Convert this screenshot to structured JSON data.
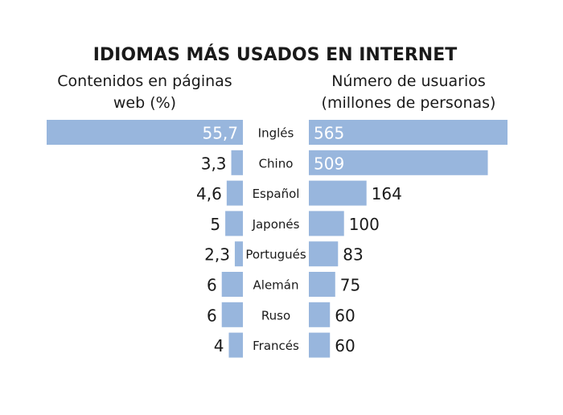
{
  "chart_data": {
    "type": "bar",
    "title": "IDIOMAS MÁS USADOS EN INTERNET",
    "categories": [
      "Inglés",
      "Chino",
      "Español",
      "Japonés",
      "Portugués",
      "Alemán",
      "Ruso",
      "Francés"
    ],
    "series": [
      {
        "name": "Contenidos en páginas web (%)",
        "name_lines": [
          "Contenidos en páginas",
          "web (%)"
        ],
        "values": [
          55.7,
          3.3,
          4.6,
          5,
          2.3,
          6,
          6,
          4
        ],
        "labels": [
          "55,7",
          "3,3",
          "4,6",
          "5",
          "2,3",
          "6",
          "6",
          "4"
        ]
      },
      {
        "name": "Número de usuarios (millones de personas)",
        "name_lines": [
          "Número de usuarios",
          "(millones de personas)"
        ],
        "values": [
          565,
          509,
          164,
          100,
          83,
          75,
          60,
          60
        ],
        "labels": [
          "565",
          "509",
          "164",
          "100",
          "83",
          "75",
          "60",
          "60"
        ]
      }
    ],
    "orientation": "horizontal-butterfly",
    "grid": false,
    "colors": {
      "bar": "#98b6dd",
      "text": "#1a1a1a",
      "inside_label": "#ffffff"
    }
  }
}
